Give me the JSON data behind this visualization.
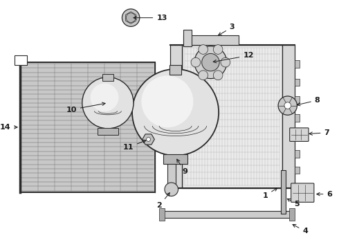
{
  "bg_color": "#ffffff",
  "line_color": "#2a2a2a",
  "label_color": "#1a1a1a",
  "figsize": [
    4.9,
    3.6
  ],
  "dpi": 100,
  "labels": [
    [
      "13",
      182,
      22,
      220,
      22,
      "left"
    ],
    [
      "12",
      300,
      88,
      348,
      78,
      "left"
    ],
    [
      "10",
      148,
      148,
      102,
      158,
      "right"
    ],
    [
      "11",
      208,
      202,
      186,
      214,
      "right"
    ],
    [
      "9",
      248,
      228,
      258,
      250,
      "left"
    ],
    [
      "14",
      18,
      184,
      4,
      184,
      "right"
    ],
    [
      "3",
      308,
      50,
      328,
      36,
      "left"
    ],
    [
      "8",
      424,
      152,
      454,
      144,
      "left"
    ],
    [
      "7",
      442,
      194,
      468,
      192,
      "left"
    ],
    [
      "2",
      242,
      278,
      228,
      300,
      "right"
    ],
    [
      "1",
      402,
      272,
      385,
      285,
      "right"
    ],
    [
      "5",
      410,
      288,
      424,
      298,
      "left"
    ],
    [
      "6",
      453,
      283,
      472,
      283,
      "left"
    ],
    [
      "4",
      418,
      326,
      436,
      338,
      "left"
    ]
  ]
}
